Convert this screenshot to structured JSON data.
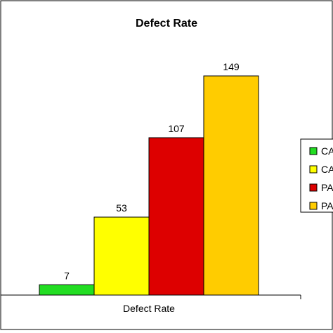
{
  "chart_data": {
    "type": "bar",
    "title": "Defect Rate",
    "categories": [
      "Defect Rate"
    ],
    "series": [
      {
        "name": "CA",
        "value": 7,
        "color": "#22dd22"
      },
      {
        "name": "CA",
        "value": 53,
        "color": "#ffff00"
      },
      {
        "name": "PA",
        "value": 107,
        "color": "#dd0000"
      },
      {
        "name": "PA",
        "value": 149,
        "color": "#ffcc00"
      }
    ],
    "ylim": [
      0,
      160
    ],
    "grid": false,
    "legend": "right"
  }
}
